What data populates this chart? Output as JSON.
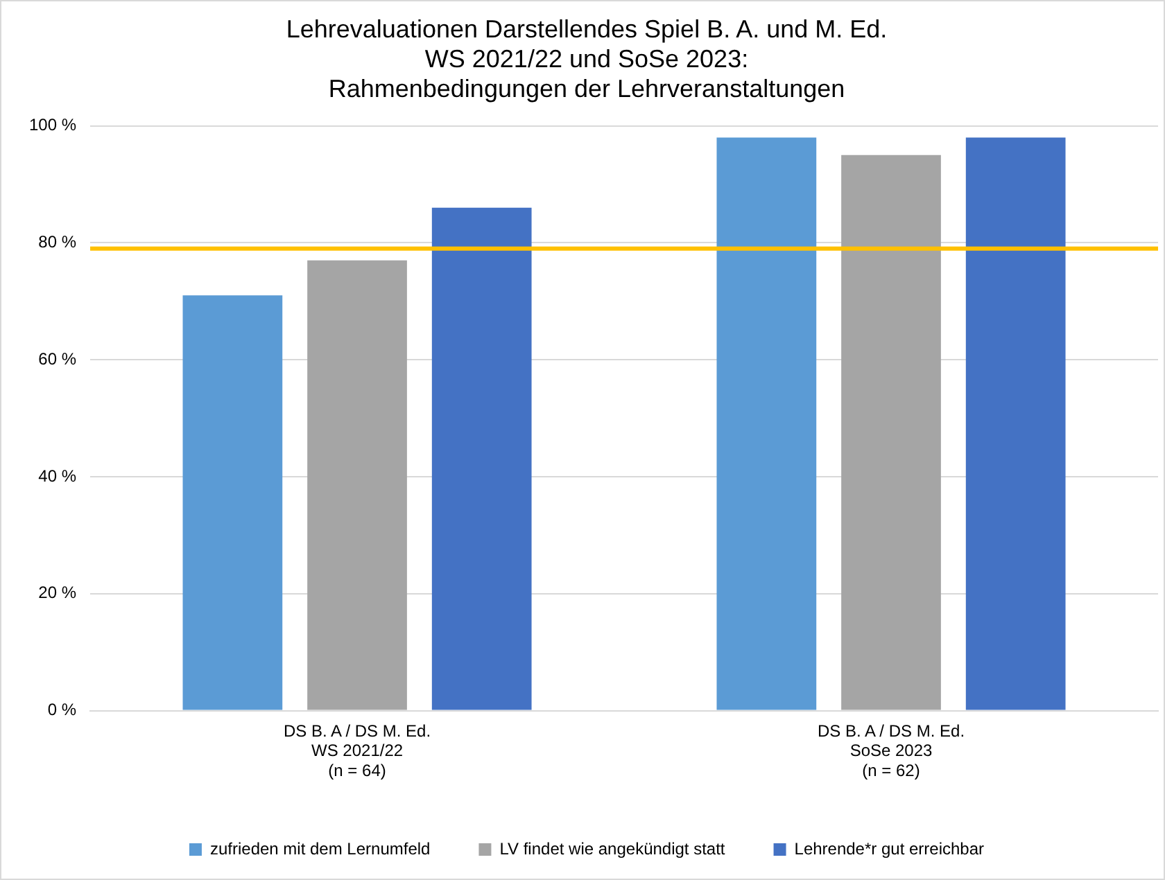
{
  "chart_data": {
    "type": "bar",
    "title": "Lehrevaluationen Darstellendes Spiel B. A. und M. Ed.\nWS 2021/22 und SoSe 2023:\nRahmenbedingungen der Lehrveranstaltungen",
    "categories": [
      "DS B. A / DS M. Ed.\nWS 2021/22\n(n = 64)",
      "DS B. A / DS M. Ed.\nSoSe 2023\n(n = 62)"
    ],
    "series": [
      {
        "name": "zufrieden mit dem Lernumfeld",
        "color": "#5b9bd5",
        "values": [
          71,
          98
        ]
      },
      {
        "name": "LV findet wie angekündigt statt",
        "color": "#a5a5a5",
        "values": [
          77,
          95
        ]
      },
      {
        "name": "Lehrende*r gut erreichbar",
        "color": "#4472c4",
        "values": [
          86,
          98
        ]
      }
    ],
    "ylim": [
      0,
      100
    ],
    "yticks": [
      {
        "value": 0,
        "label": "0 %"
      },
      {
        "value": 20,
        "label": "20 %"
      },
      {
        "value": 40,
        "label": "40 %"
      },
      {
        "value": 60,
        "label": "60 %"
      },
      {
        "value": 80,
        "label": "80 %"
      },
      {
        "value": 100,
        "label": "100 %"
      }
    ],
    "ref_lines": [
      {
        "axis": "y",
        "value": 79,
        "color": "#ffc000"
      }
    ],
    "grid": "y",
    "legend": "bottom"
  }
}
